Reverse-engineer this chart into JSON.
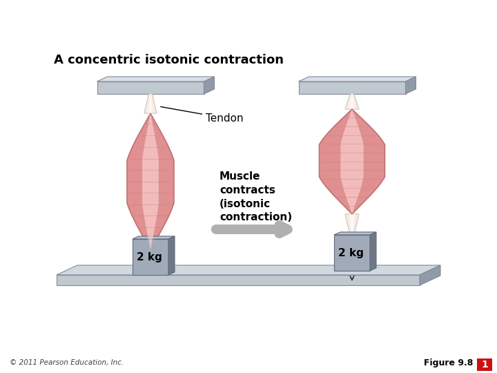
{
  "title": "A concentric isotonic contraction",
  "title_fontsize": 13,
  "bg_color": "#ffffff",
  "tendon_label": "Tendon",
  "muscle_label": "Muscle\ncontracts\n(isotonic\ncontraction)",
  "weight_label": "2 kg",
  "copyright": "© 2011 Pearson Education, Inc.",
  "figure_label": "Figure 9.8",
  "figure_num": "1",
  "figure_num_bg": "#cc1111",
  "muscle_outer": "#e09090",
  "muscle_mid": "#f0b0b0",
  "muscle_inner": "#fad0d0",
  "muscle_edge": "#c07070",
  "fiber_color": "#c08080",
  "tendon_color_top": "#f8f0e8",
  "tendon_color_bot": "#e8ddd0",
  "plate_face": "#c0c8d0",
  "plate_top": "#d8e0e8",
  "plate_right": "#909aa8",
  "weight_face": "#a0aab8",
  "weight_top": "#b8c2d0",
  "weight_right": "#707888",
  "floor_face": "#c0c8d0",
  "floor_top": "#d0d8e0",
  "floor_right": "#909aa8",
  "arrow_gray": "#b0b0b0"
}
